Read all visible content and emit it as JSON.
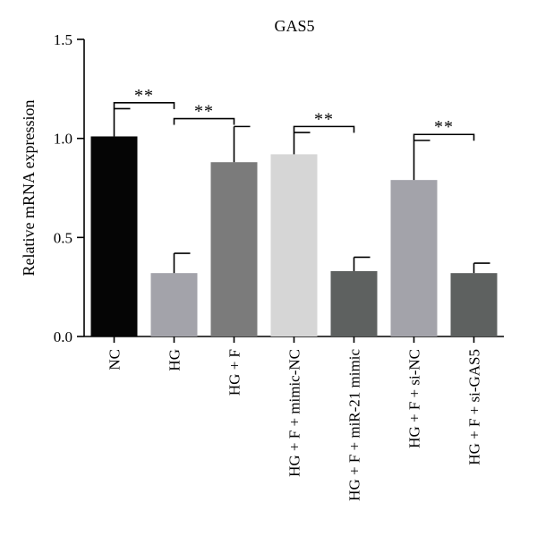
{
  "chart_data": {
    "type": "bar",
    "title": "GAS5",
    "ylabel": "Relative mRNA expression",
    "xlabel": "",
    "ylim": [
      0,
      1.5
    ],
    "yticks": [
      0.0,
      0.5,
      1.0,
      1.5
    ],
    "ytick_labels": [
      "0.0",
      "0.5",
      "1.0",
      "1.5"
    ],
    "grid": false,
    "categories": [
      "NC",
      "HG",
      "HG + F",
      "HG + F + mimic-NC",
      "HG + F + miR-21 mimic",
      "HG + F + si-NC",
      "HG + F + si-GAS5"
    ],
    "values": [
      1.01,
      0.32,
      0.88,
      0.92,
      0.33,
      0.79,
      0.32
    ],
    "errors": [
      0.14,
      0.1,
      0.18,
      0.11,
      0.07,
      0.2,
      0.05
    ],
    "colors": [
      "#050505",
      "#a3a3aa",
      "#7b7b7b",
      "#d6d6d6",
      "#5e6160",
      "#a3a3aa",
      "#5e6160"
    ],
    "significance": [
      {
        "from": 0,
        "to": 1,
        "y": 1.18,
        "label": "**"
      },
      {
        "from": 1,
        "to": 2,
        "y": 1.1,
        "label": "**"
      },
      {
        "from": 3,
        "to": 4,
        "y": 1.06,
        "label": "**"
      },
      {
        "from": 5,
        "to": 6,
        "y": 1.02,
        "label": "**"
      }
    ]
  }
}
